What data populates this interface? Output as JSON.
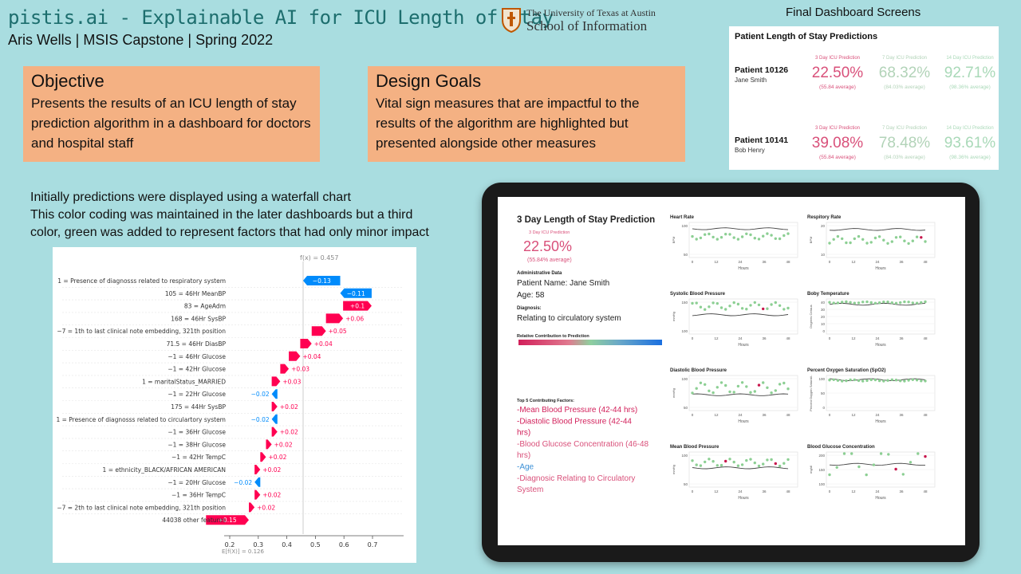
{
  "header": {
    "title": "pistis.ai - Explainable AI for ICU Length of Stay",
    "subtitle": "Aris Wells | MSIS Capstone | Spring 2022",
    "logo_line1": "The University of Texas at Austin",
    "logo_line2": "School of Information"
  },
  "objective": {
    "heading": "Objective",
    "text": "Presents the results of an ICU length of stay prediction algorithm in a dashboard for doctors and hospital staff"
  },
  "design_goals": {
    "heading": "Design Goals",
    "text": "Vital sign measures that are impactful to the results of the algorithm are highlighted but presented alongside other measures"
  },
  "waterfall_intro": {
    "line1": "Initially predictions were displayed using a waterfall chart",
    "line2": "This color coding was maintained in the later dashboards but a third",
    "line3": "color, green was added to represent factors that had only minor impact"
  },
  "waterfall": {
    "fx_label": "f(x) = 0.457",
    "efx_label": "E[f(X)] = 0.126",
    "rows": [
      {
        "label": "1 = Presence of diagnosss related to respiratory system",
        "value": -0.13,
        "text": "−0.13"
      },
      {
        "label": "105 = 46Hr MeanBP",
        "value": -0.11,
        "text": "−0.11"
      },
      {
        "label": "83 = AgeAdm",
        "value": 0.1,
        "text": "+0.1"
      },
      {
        "label": "168 = 46Hr SysBP",
        "value": 0.06,
        "text": "+0.06"
      },
      {
        "label": "−7 = 1th to last clinical note embedding, 321th position",
        "value": 0.05,
        "text": "+0.05"
      },
      {
        "label": "71.5 = 46Hr DiasBP",
        "value": 0.04,
        "text": "+0.04"
      },
      {
        "label": "−1 = 46Hr Glucose",
        "value": 0.04,
        "text": "+0.04"
      },
      {
        "label": "−1 = 42Hr Glucose",
        "value": 0.03,
        "text": "+0.03"
      },
      {
        "label": "1 = maritalStatus_MARRIED",
        "value": 0.03,
        "text": "+0.03"
      },
      {
        "label": "−1 = 22Hr Glucose",
        "value": -0.02,
        "text": "−0.02"
      },
      {
        "label": "175 = 44Hr SysBP",
        "value": 0.02,
        "text": "+0.02"
      },
      {
        "label": "1 = Presence of diagnosss related to circulartory system",
        "value": -0.02,
        "text": "−0.02"
      },
      {
        "label": "−1 = 36Hr Glucose",
        "value": 0.02,
        "text": "+0.02"
      },
      {
        "label": "−1 = 38Hr Glucose",
        "value": 0.02,
        "text": "+0.02"
      },
      {
        "label": "−1 = 42Hr TempC",
        "value": 0.02,
        "text": "+0.02"
      },
      {
        "label": "1 = ethnicity_BLACK/AFRICAN AMERICAN",
        "value": 0.02,
        "text": "+0.02"
      },
      {
        "label": "−1 = 20Hr Glucose",
        "value": -0.02,
        "text": "−0.02"
      },
      {
        "label": "−1 = 36Hr TempC",
        "value": 0.02,
        "text": "+0.02"
      },
      {
        "label": "−7 = 2th to last clinical note embedding, 321th position",
        "value": 0.02,
        "text": "+0.02"
      },
      {
        "label": "44038 other features",
        "value": 0.15,
        "text": "+0.15"
      }
    ],
    "x_ticks": [
      "0.2",
      "0.3",
      "0.4",
      "0.5",
      "0.6",
      "0.7"
    ],
    "colors": {
      "positive": "#ff0051",
      "negative": "#008bfb"
    }
  },
  "final_screens": {
    "title": "Final Dashboard Screens",
    "panel_title": "Patient Length of Stay Predictions",
    "col_headers": [
      "3 Day ICU Prediction",
      "7 Day ICU Prediction",
      "14 Day ICU Prediction"
    ],
    "patients": [
      {
        "id": "Patient 10126",
        "name": "Jane Smith",
        "values": [
          "22.50%",
          "68.32%",
          "92.71%"
        ],
        "avgs": [
          "(55.84 average)",
          "(84.03% average)",
          "(98.36% average)"
        ]
      },
      {
        "id": "Patient 10141",
        "name": "Bob Henry",
        "values": [
          "39.08%",
          "78.48%",
          "93.61%"
        ],
        "avgs": [
          "(55.84 average)",
          "(84.03% average)",
          "(98.36% average)"
        ]
      }
    ],
    "colors": [
      "#d9507a",
      "#b2d3b8",
      "#a9d9b8"
    ]
  },
  "tablet": {
    "title": "3 Day Length of Stay Prediction",
    "pred_label": "3 Day ICU Prediction",
    "pred_value": "22.50%",
    "pred_avg": "(55.84% average)",
    "admin_heading": "Administrative Data",
    "patient_name": "Patient Name: Jane Smith",
    "age": "Age: 58",
    "diag_heading": "Diagnosis:",
    "diagnosis": "Relating to circulatory system",
    "contrib_label": "Relative Contribution to Prediction",
    "factors_heading": "Top 5 Contributing Factors:",
    "factors": [
      {
        "text": "-Mean Blood Pressure (42-44 hrs)",
        "color": "#d21f5a"
      },
      {
        "text": "-Diastolic Blood Pressure (42-44 hrs)",
        "color": "#d21f5a"
      },
      {
        "text": "-Blood Glucose Concentration (46-48 hrs)",
        "color": "#d9507a"
      },
      {
        "text": "-Age",
        "color": "#3a8fd6"
      },
      {
        "text": "-Diagnosic Relating to Circulatory System",
        "color": "#d9507a"
      }
    ],
    "x_ticks": [
      "0",
      "12",
      "24",
      "36",
      "48"
    ],
    "x_label": "Hours",
    "charts": [
      {
        "title": "Heart Rate",
        "ylabel": "BPM",
        "yticks": [
          "100",
          "50"
        ]
      },
      {
        "title": "Respitory Rate",
        "ylabel": "BPM",
        "yticks": [
          "20",
          "10"
        ]
      },
      {
        "title": "Systolic Blood Pressure",
        "ylabel": "mmHg",
        "yticks": [
          "150",
          "100"
        ]
      },
      {
        "title": "Boby Temperature",
        "ylabel": "Degrees Celsius",
        "yticks": [
          "40",
          "30",
          "20",
          "10",
          "0"
        ]
      },
      {
        "title": "Diastolic Blood Pressure",
        "ylabel": "mmHg",
        "yticks": [
          "100",
          "50"
        ]
      },
      {
        "title": "Percent Oxygen Saturation (SpO2)",
        "ylabel": "Percent Oxygen Saturati..",
        "yticks": [
          "100",
          "50",
          "0"
        ]
      },
      {
        "title": "Mean Blood Pressure",
        "ylabel": "mmHg",
        "yticks": [
          "100",
          "50"
        ]
      },
      {
        "title": "Blood Glucose Concentration",
        "ylabel": "mg/dl",
        "yticks": [
          "200",
          "150",
          "100"
        ]
      }
    ]
  }
}
